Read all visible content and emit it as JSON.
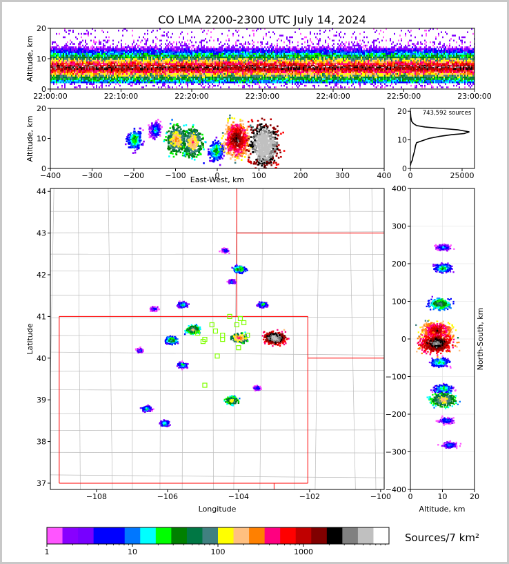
{
  "title": "CO LMA 2200-2300 UTC July 14, 2024",
  "colors": {
    "frame_bg": "#c8c8c8",
    "border": "#000000",
    "state_border": "#ff0000",
    "county_line": "#bbbbbb",
    "station_marker": "#80ff00",
    "grid": "#dddddd"
  },
  "colorbar": {
    "label": "Sources/7 km²",
    "tick_labels": [
      "1",
      "10",
      "100",
      "1000"
    ],
    "colors": [
      "#ff55ff",
      "#8800ff",
      "#7700ff",
      "#0000ff",
      "#0000ff",
      "#0077ff",
      "#00ffff",
      "#00ff00",
      "#008000",
      "#007744",
      "#408080",
      "#ffff00",
      "#ffc080",
      "#ff8000",
      "#ff0080",
      "#ff0000",
      "#c00000",
      "#800000",
      "#000000",
      "#808080",
      "#c0c0c0",
      "#ffffff"
    ]
  },
  "chart_data": [
    {
      "id": "time_height",
      "type": "heatmap",
      "ylabel": "Altitude, km",
      "xlabel": "",
      "x_ticks": [
        "22:00:00",
        "22:10:00",
        "22:20:00",
        "22:30:00",
        "22:40:00",
        "22:50:00",
        "23:00:00"
      ],
      "y_ticks": [
        0,
        10,
        20
      ],
      "xlim": [
        "22:00:00",
        "23:00:00"
      ],
      "ylim": [
        0,
        20
      ],
      "note_peak_altitude_km": 7
    },
    {
      "id": "ew_height",
      "type": "heatmap",
      "xlabel": "East-West, km",
      "ylabel": "Altitude, km",
      "x_ticks": [
        -400,
        -300,
        -200,
        -100,
        0,
        100,
        200,
        300,
        400
      ],
      "y_ticks": [
        0,
        10,
        20
      ],
      "xlim": [
        -400,
        400
      ],
      "ylim": [
        0,
        20
      ],
      "clusters": [
        {
          "x": -200,
          "alt": 10,
          "intensity": 2
        },
        {
          "x": -150,
          "alt": 13,
          "intensity": 1
        },
        {
          "x": -100,
          "alt": 10,
          "intensity": 4
        },
        {
          "x": -60,
          "alt": 9,
          "intensity": 4
        },
        {
          "x": -5,
          "alt": 6,
          "intensity": 2
        },
        {
          "x": 45,
          "alt": 10,
          "intensity": 6
        },
        {
          "x": 110,
          "alt": 8,
          "intensity": 8
        }
      ]
    },
    {
      "id": "alt_histogram",
      "type": "line",
      "annotation": "743,592 sources",
      "x_ticks": [
        0,
        25000
      ],
      "y_ticks": [
        0,
        10,
        20
      ],
      "xlim": [
        0,
        31000
      ],
      "ylim": [
        0,
        21
      ],
      "points": [
        [
          0,
          1
        ],
        [
          300,
          2
        ],
        [
          1000,
          3
        ],
        [
          1200,
          4
        ],
        [
          2000,
          6
        ],
        [
          2500,
          8
        ],
        [
          3000,
          9
        ],
        [
          5000,
          9.5
        ],
        [
          9000,
          10.5
        ],
        [
          14000,
          11.2
        ],
        [
          20000,
          11.8
        ],
        [
          26000,
          12.2
        ],
        [
          28500,
          12.8
        ],
        [
          23000,
          13.5
        ],
        [
          15000,
          14
        ],
        [
          7000,
          14.5
        ],
        [
          3000,
          15
        ],
        [
          1500,
          15.7
        ],
        [
          600,
          16.5
        ],
        [
          200,
          18
        ],
        [
          0,
          20
        ]
      ]
    },
    {
      "id": "plan_view",
      "type": "heatmap",
      "xlabel": "Longitude",
      "ylabel": "Latitude",
      "x_ticks": [
        -108,
        -106,
        -104,
        -102,
        -100
      ],
      "y_ticks": [
        37,
        38,
        39,
        40,
        41,
        42,
        43,
        44
      ],
      "xlim": [
        -109.3,
        -99.9
      ],
      "ylim": [
        36.85,
        44.07
      ],
      "clusters": [
        {
          "lon": -104.0,
          "lat": 42.15,
          "intensity": 3
        },
        {
          "lon": -103.35,
          "lat": 41.3,
          "intensity": 2
        },
        {
          "lon": -105.6,
          "lat": 41.3,
          "intensity": 2
        },
        {
          "lon": -106.4,
          "lat": 41.2,
          "intensity": 1
        },
        {
          "lon": -105.3,
          "lat": 40.7,
          "intensity": 4
        },
        {
          "lon": -104.0,
          "lat": 40.5,
          "intensity": 5
        },
        {
          "lon": -103.0,
          "lat": 40.5,
          "intensity": 8
        },
        {
          "lon": -105.9,
          "lat": 40.45,
          "intensity": 3
        },
        {
          "lon": -106.8,
          "lat": 40.2,
          "intensity": 1
        },
        {
          "lon": -105.6,
          "lat": 39.85,
          "intensity": 2
        },
        {
          "lon": -104.2,
          "lat": 39.0,
          "intensity": 4
        },
        {
          "lon": -106.6,
          "lat": 38.8,
          "intensity": 2
        },
        {
          "lon": -106.1,
          "lat": 38.45,
          "intensity": 2
        },
        {
          "lon": -103.5,
          "lat": 39.3,
          "intensity": 1
        },
        {
          "lon": -104.4,
          "lat": 42.6,
          "intensity": 1
        },
        {
          "lon": -104.2,
          "lat": 41.85,
          "intensity": 1
        }
      ],
      "stations": [
        [
          -104.25,
          41.0
        ],
        [
          -103.95,
          40.95
        ],
        [
          -103.85,
          40.85
        ],
        [
          -104.05,
          40.8
        ],
        [
          -104.75,
          40.8
        ],
        [
          -104.65,
          40.65
        ],
        [
          -105.15,
          40.6
        ],
        [
          -104.45,
          40.55
        ],
        [
          -103.75,
          40.55
        ],
        [
          -104.95,
          40.45
        ],
        [
          -104.45,
          40.45
        ],
        [
          -105.0,
          40.4
        ],
        [
          -104.0,
          40.25
        ],
        [
          -104.6,
          40.05
        ],
        [
          -104.95,
          39.35
        ]
      ]
    },
    {
      "id": "ns_height",
      "type": "heatmap",
      "xlabel": "Altitude, km",
      "ylabel": "North-South, km",
      "x_ticks": [
        0,
        10,
        20
      ],
      "y_ticks": [
        400,
        300,
        200,
        100,
        0,
        -100,
        -200,
        -300,
        -400
      ],
      "xlim": [
        0,
        20
      ],
      "ylim": [
        -400,
        400
      ],
      "clusters": [
        {
          "ns": 245,
          "alt": 10,
          "intensity": 1
        },
        {
          "ns": 190,
          "alt": 10,
          "intensity": 2
        },
        {
          "ns": 95,
          "alt": 9,
          "intensity": 3
        },
        {
          "ns": 25,
          "alt": 8,
          "intensity": 6
        },
        {
          "ns": -10,
          "alt": 8,
          "intensity": 7
        },
        {
          "ns": -60,
          "alt": 9,
          "intensity": 2
        },
        {
          "ns": -130,
          "alt": 10,
          "intensity": 2
        },
        {
          "ns": -160,
          "alt": 10,
          "intensity": 4
        },
        {
          "ns": -215,
          "alt": 11,
          "intensity": 1
        },
        {
          "ns": -280,
          "alt": 12,
          "intensity": 1
        }
      ]
    }
  ]
}
